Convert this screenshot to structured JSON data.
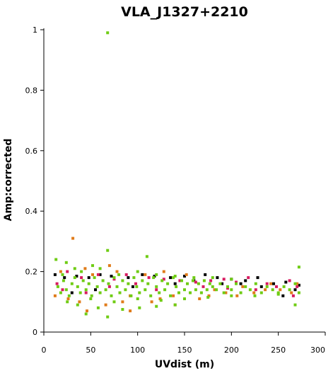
{
  "chart_data": {
    "type": "scatter",
    "title": "VLA_J1327+2210",
    "xlabel": "UVdist (m)",
    "ylabel": "Amp:corrected",
    "xlim": [
      0,
      300
    ],
    "ylim": [
      0,
      1
    ],
    "xticks": [
      0,
      50,
      100,
      150,
      200,
      250,
      300
    ],
    "xtick_labels": [
      "0",
      "50",
      "100",
      "150",
      "200",
      "250",
      "300"
    ],
    "yticks": [
      0,
      0.2,
      0.4,
      0.6,
      0.8,
      1
    ],
    "ytick_labels": [
      "0",
      "0.2",
      "0.4",
      "0.6",
      "0.8",
      "1"
    ],
    "grid": false,
    "legend": "none",
    "series": [
      {
        "color": "#000000",
        "points": [
          [
            12,
            0.19
          ],
          [
            22,
            0.18
          ],
          [
            35,
            0.185
          ],
          [
            48,
            0.18
          ],
          [
            60,
            0.19
          ],
          [
            72,
            0.185
          ],
          [
            90,
            0.18
          ],
          [
            105,
            0.19
          ],
          [
            118,
            0.185
          ],
          [
            135,
            0.18
          ],
          [
            150,
            0.185
          ],
          [
            172,
            0.19
          ],
          [
            185,
            0.18
          ],
          [
            200,
            0.175
          ],
          [
            215,
            0.17
          ],
          [
            228,
            0.18
          ],
          [
            245,
            0.16
          ],
          [
            258,
            0.165
          ],
          [
            268,
            0.14
          ],
          [
            272,
            0.155
          ],
          [
            255,
            0.12
          ],
          [
            232,
            0.15
          ],
          [
            210,
            0.16
          ],
          [
            190,
            0.16
          ],
          [
            160,
            0.17
          ],
          [
            140,
            0.16
          ],
          [
            95,
            0.15
          ],
          [
            55,
            0.14
          ],
          [
            30,
            0.13
          ]
        ]
      },
      {
        "color": "#d81b60",
        "points": [
          [
            14,
            0.16
          ],
          [
            25,
            0.2
          ],
          [
            40,
            0.18
          ],
          [
            58,
            0.19
          ],
          [
            75,
            0.175
          ],
          [
            88,
            0.19
          ],
          [
            98,
            0.16
          ],
          [
            112,
            0.18
          ],
          [
            128,
            0.175
          ],
          [
            145,
            0.17
          ],
          [
            162,
            0.165
          ],
          [
            178,
            0.17
          ],
          [
            192,
            0.175
          ],
          [
            205,
            0.165
          ],
          [
            218,
            0.18
          ],
          [
            238,
            0.16
          ],
          [
            248,
            0.15
          ],
          [
            262,
            0.17
          ],
          [
            270,
            0.15
          ],
          [
            266,
            0.12
          ],
          [
            226,
            0.14
          ],
          [
            196,
            0.145
          ],
          [
            170,
            0.15
          ],
          [
            120,
            0.14
          ],
          [
            70,
            0.15
          ],
          [
            45,
            0.13
          ],
          [
            20,
            0.14
          ]
        ]
      },
      {
        "color": "#e07b1a",
        "points": [
          [
            31,
            0.31
          ],
          [
            12,
            0.12
          ],
          [
            18,
            0.2
          ],
          [
            26,
            0.11
          ],
          [
            38,
            0.1
          ],
          [
            44,
            0.21
          ],
          [
            52,
            0.19
          ],
          [
            66,
            0.09
          ],
          [
            78,
            0.2
          ],
          [
            84,
            0.1
          ],
          [
            92,
            0.12
          ],
          [
            108,
            0.19
          ],
          [
            115,
            0.1
          ],
          [
            124,
            0.11
          ],
          [
            138,
            0.12
          ],
          [
            152,
            0.19
          ],
          [
            166,
            0.11
          ],
          [
            176,
            0.12
          ],
          [
            182,
            0.14
          ],
          [
            194,
            0.13
          ],
          [
            206,
            0.12
          ],
          [
            212,
            0.15
          ],
          [
            224,
            0.13
          ],
          [
            236,
            0.14
          ],
          [
            242,
            0.16
          ],
          [
            252,
            0.14
          ],
          [
            264,
            0.13
          ],
          [
            270,
            0.16
          ],
          [
            46,
            0.07
          ],
          [
            92,
            0.07
          ],
          [
            140,
            0.09
          ],
          [
            70,
            0.22
          ],
          [
            128,
            0.2
          ]
        ]
      },
      {
        "color": "#6fcc14",
        "points": [
          [
            68,
            0.99
          ],
          [
            68,
            0.27
          ],
          [
            110,
            0.25
          ],
          [
            13,
            0.24
          ],
          [
            24,
            0.23
          ],
          [
            33,
            0.21
          ],
          [
            52,
            0.22
          ],
          [
            45,
            0.06
          ],
          [
            68,
            0.05
          ],
          [
            102,
            0.08
          ],
          [
            120,
            0.085
          ],
          [
            140,
            0.09
          ],
          [
            268,
            0.09
          ],
          [
            272,
            0.215
          ],
          [
            36,
            0.09
          ],
          [
            58,
            0.08
          ],
          [
            84,
            0.075
          ],
          [
            15,
            0.15
          ],
          [
            18,
            0.13
          ],
          [
            21,
            0.17
          ],
          [
            24,
            0.14
          ],
          [
            27,
            0.12
          ],
          [
            30,
            0.16
          ],
          [
            33,
            0.18
          ],
          [
            36,
            0.15
          ],
          [
            39,
            0.13
          ],
          [
            42,
            0.17
          ],
          [
            45,
            0.14
          ],
          [
            48,
            0.16
          ],
          [
            51,
            0.12
          ],
          [
            54,
            0.18
          ],
          [
            57,
            0.15
          ],
          [
            60,
            0.13
          ],
          [
            63,
            0.17
          ],
          [
            66,
            0.14
          ],
          [
            69,
            0.16
          ],
          [
            72,
            0.12
          ],
          [
            75,
            0.18
          ],
          [
            78,
            0.15
          ],
          [
            81,
            0.13
          ],
          [
            84,
            0.17
          ],
          [
            87,
            0.14
          ],
          [
            90,
            0.16
          ],
          [
            93,
            0.12
          ],
          [
            96,
            0.18
          ],
          [
            99,
            0.15
          ],
          [
            102,
            0.13
          ],
          [
            105,
            0.17
          ],
          [
            108,
            0.14
          ],
          [
            111,
            0.16
          ],
          [
            114,
            0.12
          ],
          [
            117,
            0.18
          ],
          [
            120,
            0.15
          ],
          [
            123,
            0.13
          ],
          [
            126,
            0.17
          ],
          [
            129,
            0.14
          ],
          [
            132,
            0.16
          ],
          [
            135,
            0.12
          ],
          [
            138,
            0.18
          ],
          [
            141,
            0.15
          ],
          [
            144,
            0.13
          ],
          [
            147,
            0.17
          ],
          [
            150,
            0.14
          ],
          [
            153,
            0.16
          ],
          [
            156,
            0.13
          ],
          [
            159,
            0.17
          ],
          [
            162,
            0.14
          ],
          [
            165,
            0.16
          ],
          [
            168,
            0.13
          ],
          [
            171,
            0.17
          ],
          [
            174,
            0.14
          ],
          [
            177,
            0.16
          ],
          [
            180,
            0.15
          ],
          [
            184,
            0.14
          ],
          [
            188,
            0.16
          ],
          [
            192,
            0.13
          ],
          [
            196,
            0.15
          ],
          [
            200,
            0.14
          ],
          [
            205,
            0.16
          ],
          [
            210,
            0.13
          ],
          [
            215,
            0.15
          ],
          [
            220,
            0.14
          ],
          [
            226,
            0.16
          ],
          [
            232,
            0.13
          ],
          [
            238,
            0.15
          ],
          [
            244,
            0.14
          ],
          [
            250,
            0.13
          ],
          [
            256,
            0.15
          ],
          [
            262,
            0.14
          ],
          [
            268,
            0.16
          ],
          [
            272,
            0.13
          ],
          [
            20,
            0.19
          ],
          [
            40,
            0.2
          ],
          [
            60,
            0.21
          ],
          [
            80,
            0.19
          ],
          [
            100,
            0.2
          ],
          [
            120,
            0.19
          ],
          [
            140,
            0.185
          ],
          [
            160,
            0.18
          ],
          [
            180,
            0.18
          ],
          [
            200,
            0.175
          ],
          [
            25,
            0.1
          ],
          [
            50,
            0.11
          ],
          [
            75,
            0.1
          ],
          [
            100,
            0.11
          ],
          [
            125,
            0.105
          ],
          [
            150,
            0.11
          ],
          [
            175,
            0.115
          ],
          [
            200,
            0.12
          ],
          [
            225,
            0.12
          ],
          [
            250,
            0.125
          ]
        ]
      }
    ]
  }
}
